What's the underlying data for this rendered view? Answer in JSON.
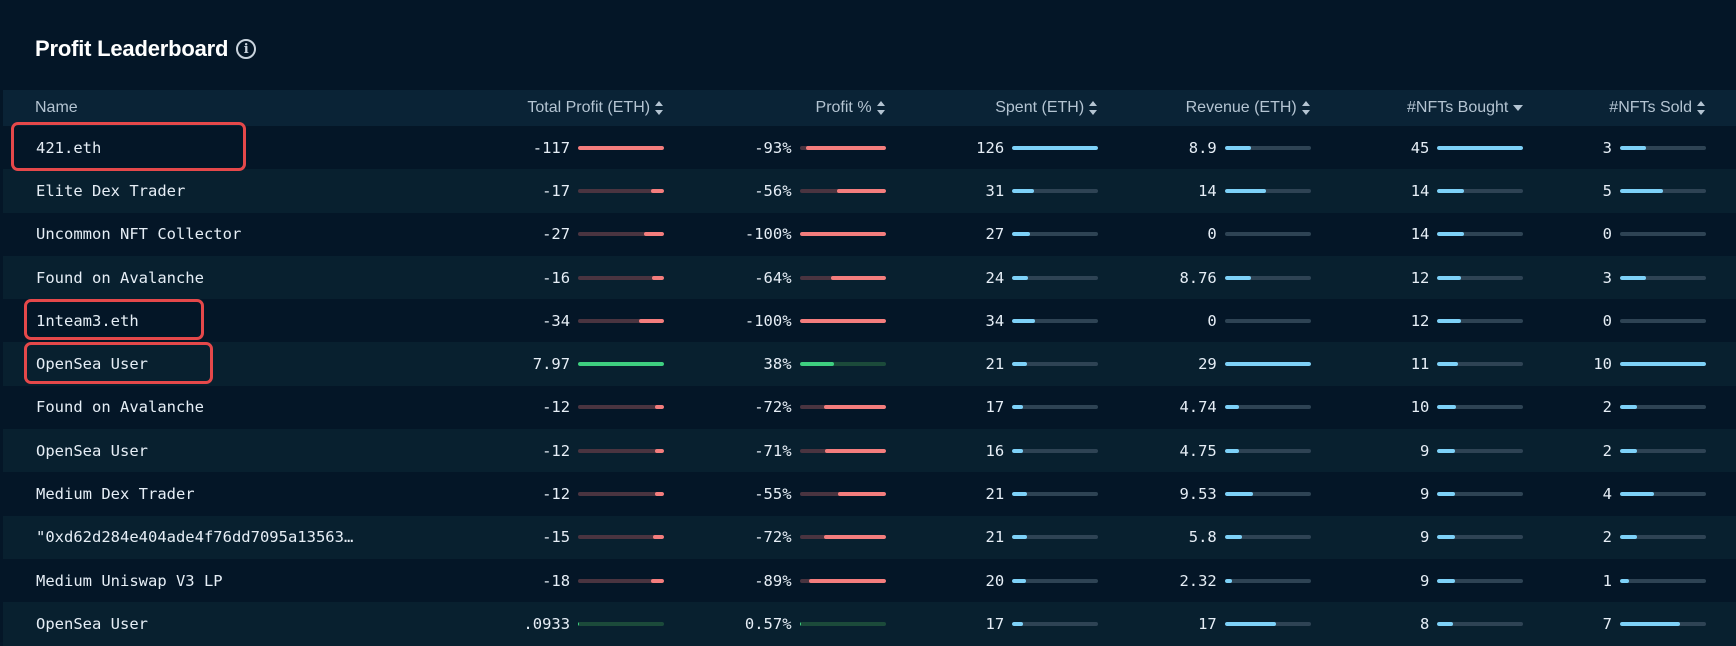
{
  "title": "Profit Leaderboard",
  "columns": {
    "name": "Name",
    "total_profit": "Total Profit (ETH)",
    "profit_pct": "Profit %",
    "spent": "Spent (ETH)",
    "revenue": "Revenue (ETH)",
    "nfts_bought": "#NFTs Bought",
    "nfts_sold": "#NFTs Sold"
  },
  "colors": {
    "negative": "#f47d7d",
    "positive": "#3ecf80",
    "neutral": "#7dd1f8",
    "highlight": "#e5484a"
  },
  "rows": [
    {
      "name": "421.eth",
      "total_profit": "-117",
      "profit_level": 1.0,
      "profit_sign": "neg",
      "profit_pct": "-93%",
      "pct_level": 0.93,
      "pct_sign": "neg",
      "spent": "126",
      "spent_level": 1.0,
      "revenue": "8.9",
      "revenue_level": 0.31,
      "bought": "45",
      "bought_level": 1.0,
      "sold": "3",
      "sold_level": 0.3,
      "highlighted": true
    },
    {
      "name": "Elite Dex Trader",
      "total_profit": "-17",
      "profit_level": 0.15,
      "profit_sign": "neg",
      "profit_pct": "-56%",
      "pct_level": 0.56,
      "pct_sign": "neg",
      "spent": "31",
      "spent_level": 0.25,
      "revenue": "14",
      "revenue_level": 0.48,
      "bought": "14",
      "bought_level": 0.31,
      "sold": "5",
      "sold_level": 0.5,
      "highlighted": false
    },
    {
      "name": "Uncommon NFT Collector",
      "total_profit": "-27",
      "profit_level": 0.23,
      "profit_sign": "neg",
      "profit_pct": "-100%",
      "pct_level": 1.0,
      "pct_sign": "neg",
      "spent": "27",
      "spent_level": 0.21,
      "revenue": "0",
      "revenue_level": 0.0,
      "bought": "14",
      "bought_level": 0.31,
      "sold": "0",
      "sold_level": 0.0,
      "highlighted": false
    },
    {
      "name": "Found on Avalanche",
      "total_profit": "-16",
      "profit_level": 0.14,
      "profit_sign": "neg",
      "profit_pct": "-64%",
      "pct_level": 0.64,
      "pct_sign": "neg",
      "spent": "24",
      "spent_level": 0.19,
      "revenue": "8.76",
      "revenue_level": 0.3,
      "bought": "12",
      "bought_level": 0.27,
      "sold": "3",
      "sold_level": 0.3,
      "highlighted": false
    },
    {
      "name": "1nteam3.eth",
      "total_profit": "-34",
      "profit_level": 0.29,
      "profit_sign": "neg",
      "profit_pct": "-100%",
      "pct_level": 1.0,
      "pct_sign": "neg",
      "spent": "34",
      "spent_level": 0.27,
      "revenue": "0",
      "revenue_level": 0.0,
      "bought": "12",
      "bought_level": 0.27,
      "sold": "0",
      "sold_level": 0.0,
      "highlighted": true
    },
    {
      "name": "OpenSea User",
      "total_profit": "7.97",
      "profit_level": 1.0,
      "profit_sign": "pos",
      "profit_pct": "38%",
      "pct_level": 0.4,
      "pct_sign": "pos",
      "spent": "21",
      "spent_level": 0.17,
      "revenue": "29",
      "revenue_level": 1.0,
      "bought": "11",
      "bought_level": 0.24,
      "sold": "10",
      "sold_level": 1.0,
      "highlighted": true
    },
    {
      "name": "Found on Avalanche",
      "total_profit": "-12",
      "profit_level": 0.1,
      "profit_sign": "neg",
      "profit_pct": "-72%",
      "pct_level": 0.72,
      "pct_sign": "neg",
      "spent": "17",
      "spent_level": 0.13,
      "revenue": "4.74",
      "revenue_level": 0.16,
      "bought": "10",
      "bought_level": 0.22,
      "sold": "2",
      "sold_level": 0.2,
      "highlighted": false
    },
    {
      "name": "OpenSea User",
      "total_profit": "-12",
      "profit_level": 0.1,
      "profit_sign": "neg",
      "profit_pct": "-71%",
      "pct_level": 0.71,
      "pct_sign": "neg",
      "spent": "16",
      "spent_level": 0.13,
      "revenue": "4.75",
      "revenue_level": 0.16,
      "bought": "9",
      "bought_level": 0.2,
      "sold": "2",
      "sold_level": 0.2,
      "highlighted": false
    },
    {
      "name": "Medium Dex Trader",
      "total_profit": "-12",
      "profit_level": 0.1,
      "profit_sign": "neg",
      "profit_pct": "-55%",
      "pct_level": 0.55,
      "pct_sign": "neg",
      "spent": "21",
      "spent_level": 0.17,
      "revenue": "9.53",
      "revenue_level": 0.33,
      "bought": "9",
      "bought_level": 0.2,
      "sold": "4",
      "sold_level": 0.4,
      "highlighted": false
    },
    {
      "name": "\"0xd62d284e404ade4f76dd7095a13563…",
      "total_profit": "-15",
      "profit_level": 0.13,
      "profit_sign": "neg",
      "profit_pct": "-72%",
      "pct_level": 0.72,
      "pct_sign": "neg",
      "spent": "21",
      "spent_level": 0.17,
      "revenue": "5.8",
      "revenue_level": 0.2,
      "bought": "9",
      "bought_level": 0.2,
      "sold": "2",
      "sold_level": 0.2,
      "highlighted": false
    },
    {
      "name": "Medium Uniswap V3 LP",
      "total_profit": "-18",
      "profit_level": 0.15,
      "profit_sign": "neg",
      "profit_pct": "-89%",
      "pct_level": 0.89,
      "pct_sign": "neg",
      "spent": "20",
      "spent_level": 0.16,
      "revenue": "2.32",
      "revenue_level": 0.08,
      "bought": "9",
      "bought_level": 0.2,
      "sold": "1",
      "sold_level": 0.1,
      "highlighted": false
    },
    {
      "name": "OpenSea User",
      "total_profit": ".0933",
      "profit_level": 0.01,
      "profit_sign": "pos",
      "profit_pct": "0.57%",
      "pct_level": 0.01,
      "pct_sign": "pos",
      "spent": "17",
      "spent_level": 0.13,
      "revenue": "17",
      "revenue_level": 0.59,
      "bought": "8",
      "bought_level": 0.18,
      "sold": "7",
      "sold_level": 0.7,
      "highlighted": false
    }
  ]
}
